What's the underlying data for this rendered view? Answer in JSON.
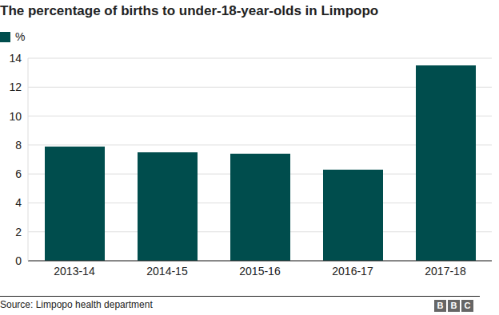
{
  "chart_data": {
    "type": "bar",
    "title": "The percentage of births to under-18-year-olds in Limpopo",
    "categories": [
      "2013-14",
      "2014-15",
      "2015-16",
      "2016-17",
      "2017-18"
    ],
    "series": [
      {
        "name": "%",
        "color": "#004d4d",
        "values": [
          7.9,
          7.5,
          7.4,
          6.3,
          13.5
        ]
      }
    ],
    "ylim": [
      0,
      14
    ],
    "yticks": [
      0,
      2,
      4,
      6,
      8,
      10,
      12,
      14
    ],
    "grid": true,
    "legend": "top-left",
    "source": "Source: Limpopo health department",
    "credit": "BBC"
  }
}
